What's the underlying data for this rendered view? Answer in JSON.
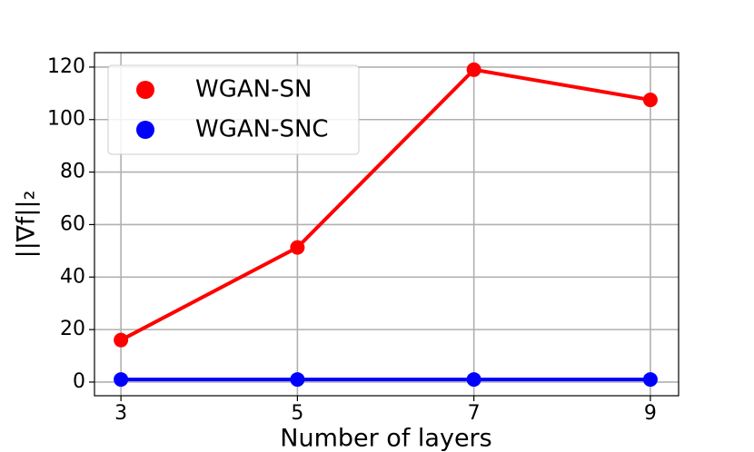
{
  "chart_data": {
    "type": "line",
    "x": [
      3,
      5,
      7,
      9
    ],
    "series": [
      {
        "name": "WGAN-SN",
        "color": "#ff0000",
        "values": [
          16,
          51.3,
          119,
          107.5
        ]
      },
      {
        "name": "WGAN-SNC",
        "color": "#0000ff",
        "values": [
          1,
          1,
          1,
          1
        ]
      }
    ],
    "xlabel": "Number of layers",
    "ylabel": "||∇f||₂",
    "xlim": [
      2.7,
      9.32
    ],
    "xticks": [
      3,
      5,
      7,
      9
    ],
    "ylim": [
      -5.2,
      125.5
    ],
    "yticks": [
      0,
      20,
      40,
      60,
      80,
      100,
      120
    ],
    "grid": true,
    "legend": "upper left"
  }
}
